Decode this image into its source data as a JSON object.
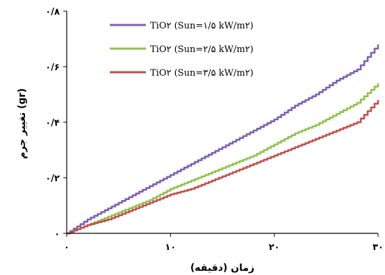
{
  "chart_data": {
    "type": "line",
    "xlabel": "زمان (دقیقه)",
    "ylabel": "تغییر جرم (gr)",
    "xlim": [
      0,
      30
    ],
    "ylim": [
      0,
      0.8
    ],
    "x_ticks": [
      0,
      10,
      20,
      30
    ],
    "x_tick_labels": [
      "۰",
      "۱۰",
      "۲۰",
      "۳۰"
    ],
    "y_ticks": [
      0,
      0.2,
      0.4,
      0.6,
      0.8
    ],
    "y_tick_labels": [
      "۰",
      "۰/۲",
      "۰/۴",
      "۰/۶",
      "۰/۸"
    ],
    "grid": false,
    "legend_position": "top-right",
    "series": [
      {
        "name": "TiO۲ (Sun=۱/۵ kW/m۲)",
        "color": "#7f5fb0",
        "x": [
          0,
          2,
          4,
          6,
          8,
          10,
          12,
          14,
          16,
          18,
          20,
          22,
          24,
          26,
          28,
          30
        ],
        "y": [
          0,
          0.05,
          0.09,
          0.13,
          0.17,
          0.21,
          0.25,
          0.29,
          0.33,
          0.37,
          0.41,
          0.46,
          0.5,
          0.55,
          0.59,
          0.68
        ]
      },
      {
        "name": "TiO۲ (Sun=۲/۵ kW/m۲)",
        "color": "#92c14f",
        "x": [
          0,
          2,
          4,
          6,
          8,
          10,
          12,
          14,
          16,
          18,
          20,
          22,
          24,
          26,
          28,
          30
        ],
        "y": [
          0,
          0.03,
          0.06,
          0.09,
          0.12,
          0.16,
          0.19,
          0.22,
          0.25,
          0.28,
          0.32,
          0.36,
          0.39,
          0.43,
          0.47,
          0.54
        ]
      },
      {
        "name": "TiO۲ (Sun=۳/۵ kW/m۲)",
        "color": "#c0504d",
        "x": [
          0,
          2,
          4,
          6,
          8,
          10,
          12,
          14,
          16,
          18,
          20,
          22,
          24,
          26,
          28,
          30
        ],
        "y": [
          0,
          0.03,
          0.05,
          0.08,
          0.11,
          0.14,
          0.16,
          0.19,
          0.22,
          0.25,
          0.28,
          0.31,
          0.34,
          0.37,
          0.4,
          0.48
        ]
      }
    ]
  }
}
